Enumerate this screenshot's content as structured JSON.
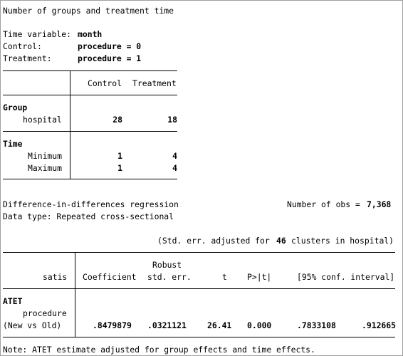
{
  "groups_table": {
    "title": "Number of groups and treatment time",
    "time_var_label": "Time variable:",
    "time_var_value": "month",
    "control_label": "Control:",
    "control_value": "procedure = 0",
    "treatment_label": "Treatment:",
    "treatment_value": "procedure = 1",
    "col_control": "Control",
    "col_treatment": "Treatment",
    "group_header": "Group",
    "group_row_label": "hospital",
    "group_control": "28",
    "group_treatment": "18",
    "time_header": "Time",
    "min_label": "Minimum",
    "min_control": "1",
    "min_treatment": "4",
    "max_label": "Maximum",
    "max_control": "1",
    "max_treatment": "4"
  },
  "regression": {
    "title": "Difference-in-differences regression",
    "nobs_label": "Number of obs =",
    "nobs_value": "7,368",
    "data_type": "Data type: Repeated cross-sectional",
    "se_note_prefix": "(Std. err. adjusted for",
    "se_note_clusters": "46",
    "se_note_suffix": "clusters in hospital)",
    "depvar": "satis",
    "h_coef": "Coefficient",
    "h_robust": "Robust",
    "h_se": "std. err.",
    "h_t": "t",
    "h_p": "P>|t|",
    "h_ci": "[95% conf. interval]",
    "atet_label": "ATET",
    "var_label": "procedure",
    "contrast_label": "(New vs Old)",
    "coef": ".8479879",
    "se": ".0321121",
    "t": "26.41",
    "p": "0.000",
    "ci_low": ".7833108",
    "ci_high": ".912665",
    "footnote": "Note: ATET estimate adjusted for group effects and time effects."
  }
}
